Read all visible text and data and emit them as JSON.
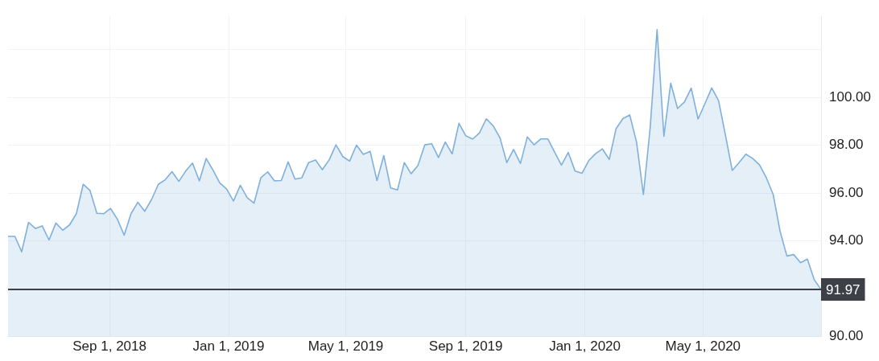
{
  "chart_data": {
    "type": "area",
    "x": [
      "2018-05-20",
      "2018-05-27",
      "2018-06-03",
      "2018-06-10",
      "2018-06-17",
      "2018-06-24",
      "2018-07-01",
      "2018-07-08",
      "2018-07-15",
      "2018-07-22",
      "2018-07-29",
      "2018-08-05",
      "2018-08-12",
      "2018-08-19",
      "2018-08-26",
      "2018-09-02",
      "2018-09-09",
      "2018-09-16",
      "2018-09-23",
      "2018-09-30",
      "2018-10-07",
      "2018-10-14",
      "2018-10-21",
      "2018-10-28",
      "2018-11-04",
      "2018-11-11",
      "2018-11-18",
      "2018-11-25",
      "2018-12-02",
      "2018-12-09",
      "2018-12-16",
      "2018-12-23",
      "2018-12-30",
      "2019-01-06",
      "2019-01-13",
      "2019-01-20",
      "2019-01-27",
      "2019-02-03",
      "2019-02-10",
      "2019-02-17",
      "2019-02-24",
      "2019-03-03",
      "2019-03-10",
      "2019-03-17",
      "2019-03-24",
      "2019-03-31",
      "2019-04-07",
      "2019-04-14",
      "2019-04-21",
      "2019-04-28",
      "2019-05-05",
      "2019-05-12",
      "2019-05-19",
      "2019-05-26",
      "2019-06-02",
      "2019-06-09",
      "2019-06-16",
      "2019-06-23",
      "2019-06-30",
      "2019-07-07",
      "2019-07-14",
      "2019-07-21",
      "2019-07-28",
      "2019-08-04",
      "2019-08-11",
      "2019-08-18",
      "2019-08-25",
      "2019-09-01",
      "2019-09-08",
      "2019-09-15",
      "2019-09-22",
      "2019-09-29",
      "2019-10-06",
      "2019-10-13",
      "2019-10-20",
      "2019-10-27",
      "2019-11-03",
      "2019-11-10",
      "2019-11-17",
      "2019-11-24",
      "2019-12-01",
      "2019-12-08",
      "2019-12-15",
      "2019-12-22",
      "2019-12-29",
      "2020-01-05",
      "2020-01-12",
      "2020-01-19",
      "2020-01-26",
      "2020-02-02",
      "2020-02-09",
      "2020-02-16",
      "2020-02-23",
      "2020-03-01",
      "2020-03-08",
      "2020-03-15",
      "2020-03-22",
      "2020-03-29",
      "2020-04-05",
      "2020-04-12",
      "2020-04-19",
      "2020-04-26",
      "2020-05-03",
      "2020-05-10",
      "2020-05-17",
      "2020-05-24",
      "2020-05-31",
      "2020-06-07",
      "2020-06-14",
      "2020-06-21",
      "2020-06-28",
      "2020-07-05",
      "2020-07-12",
      "2020-07-19",
      "2020-07-26",
      "2020-08-02",
      "2020-08-09",
      "2020-08-16",
      "2020-08-23",
      "2020-08-30"
    ],
    "series": [
      {
        "color": "#7fb0dc",
        "values": [
          94.19,
          94.19,
          93.55,
          94.78,
          94.52,
          94.63,
          94.04,
          94.75,
          94.45,
          94.67,
          95.14,
          96.37,
          96.11,
          95.16,
          95.14,
          95.36,
          94.91,
          94.24,
          95.14,
          95.62,
          95.24,
          95.73,
          96.37,
          96.56,
          96.9,
          96.49,
          96.92,
          97.26,
          96.51,
          97.45,
          96.96,
          96.42,
          96.17,
          95.67,
          96.33,
          95.81,
          95.58,
          96.64,
          96.89,
          96.51,
          96.53,
          97.31,
          96.59,
          96.64,
          97.28,
          97.39,
          96.98,
          97.39,
          98.02,
          97.53,
          97.34,
          98.01,
          97.62,
          97.75,
          96.53,
          97.57,
          96.22,
          96.13,
          97.28,
          96.81,
          97.16,
          98.02,
          98.07,
          97.49,
          98.14,
          97.64,
          98.92,
          98.4,
          98.26,
          98.52,
          99.11,
          98.82,
          98.32,
          97.28,
          97.83,
          97.24,
          98.35,
          98.02,
          98.27,
          98.27,
          97.72,
          97.17,
          97.7,
          96.92,
          96.83,
          97.36,
          97.65,
          97.85,
          97.41,
          98.7,
          99.12,
          99.27,
          98.13,
          95.94,
          98.77,
          102.84,
          98.38,
          100.6,
          99.54,
          99.81,
          100.39,
          99.1,
          99.74,
          100.4,
          99.87,
          98.43,
          96.95,
          97.28,
          97.63,
          97.45,
          97.18,
          96.64,
          95.94,
          94.41,
          93.37,
          93.43,
          93.09,
          93.24,
          92.38,
          91.97
        ]
      }
    ],
    "xlim": [
      "2018-05-20",
      "2020-08-30"
    ],
    "xticks": [
      {
        "value": "2018-09-01",
        "label": "Sep 1, 2018"
      },
      {
        "value": "2019-01-01",
        "label": "Jan 1, 2019"
      },
      {
        "value": "2019-05-01",
        "label": "May 1, 2019"
      },
      {
        "value": "2019-09-01",
        "label": "Sep 1, 2019"
      },
      {
        "value": "2020-01-01",
        "label": "Jan 1, 2020"
      },
      {
        "value": "2020-05-01",
        "label": "May 1, 2020"
      }
    ],
    "ylim": [
      90,
      103.4
    ],
    "yticks": [
      {
        "value": 90,
        "label": "90.00"
      },
      {
        "value": 92,
        "label": null
      },
      {
        "value": 94,
        "label": "94.00"
      },
      {
        "value": 96,
        "label": "96.00"
      },
      {
        "value": 98,
        "label": "98.00"
      },
      {
        "value": 100,
        "label": "100.00"
      },
      {
        "value": 102,
        "label": null
      }
    ],
    "ref_lines": [
      {
        "axis": "y",
        "value": 91.97,
        "label": "91.97",
        "color": "#3d4147"
      }
    ],
    "grid": true,
    "legend": false,
    "marker": "none",
    "line_style": "solid"
  }
}
